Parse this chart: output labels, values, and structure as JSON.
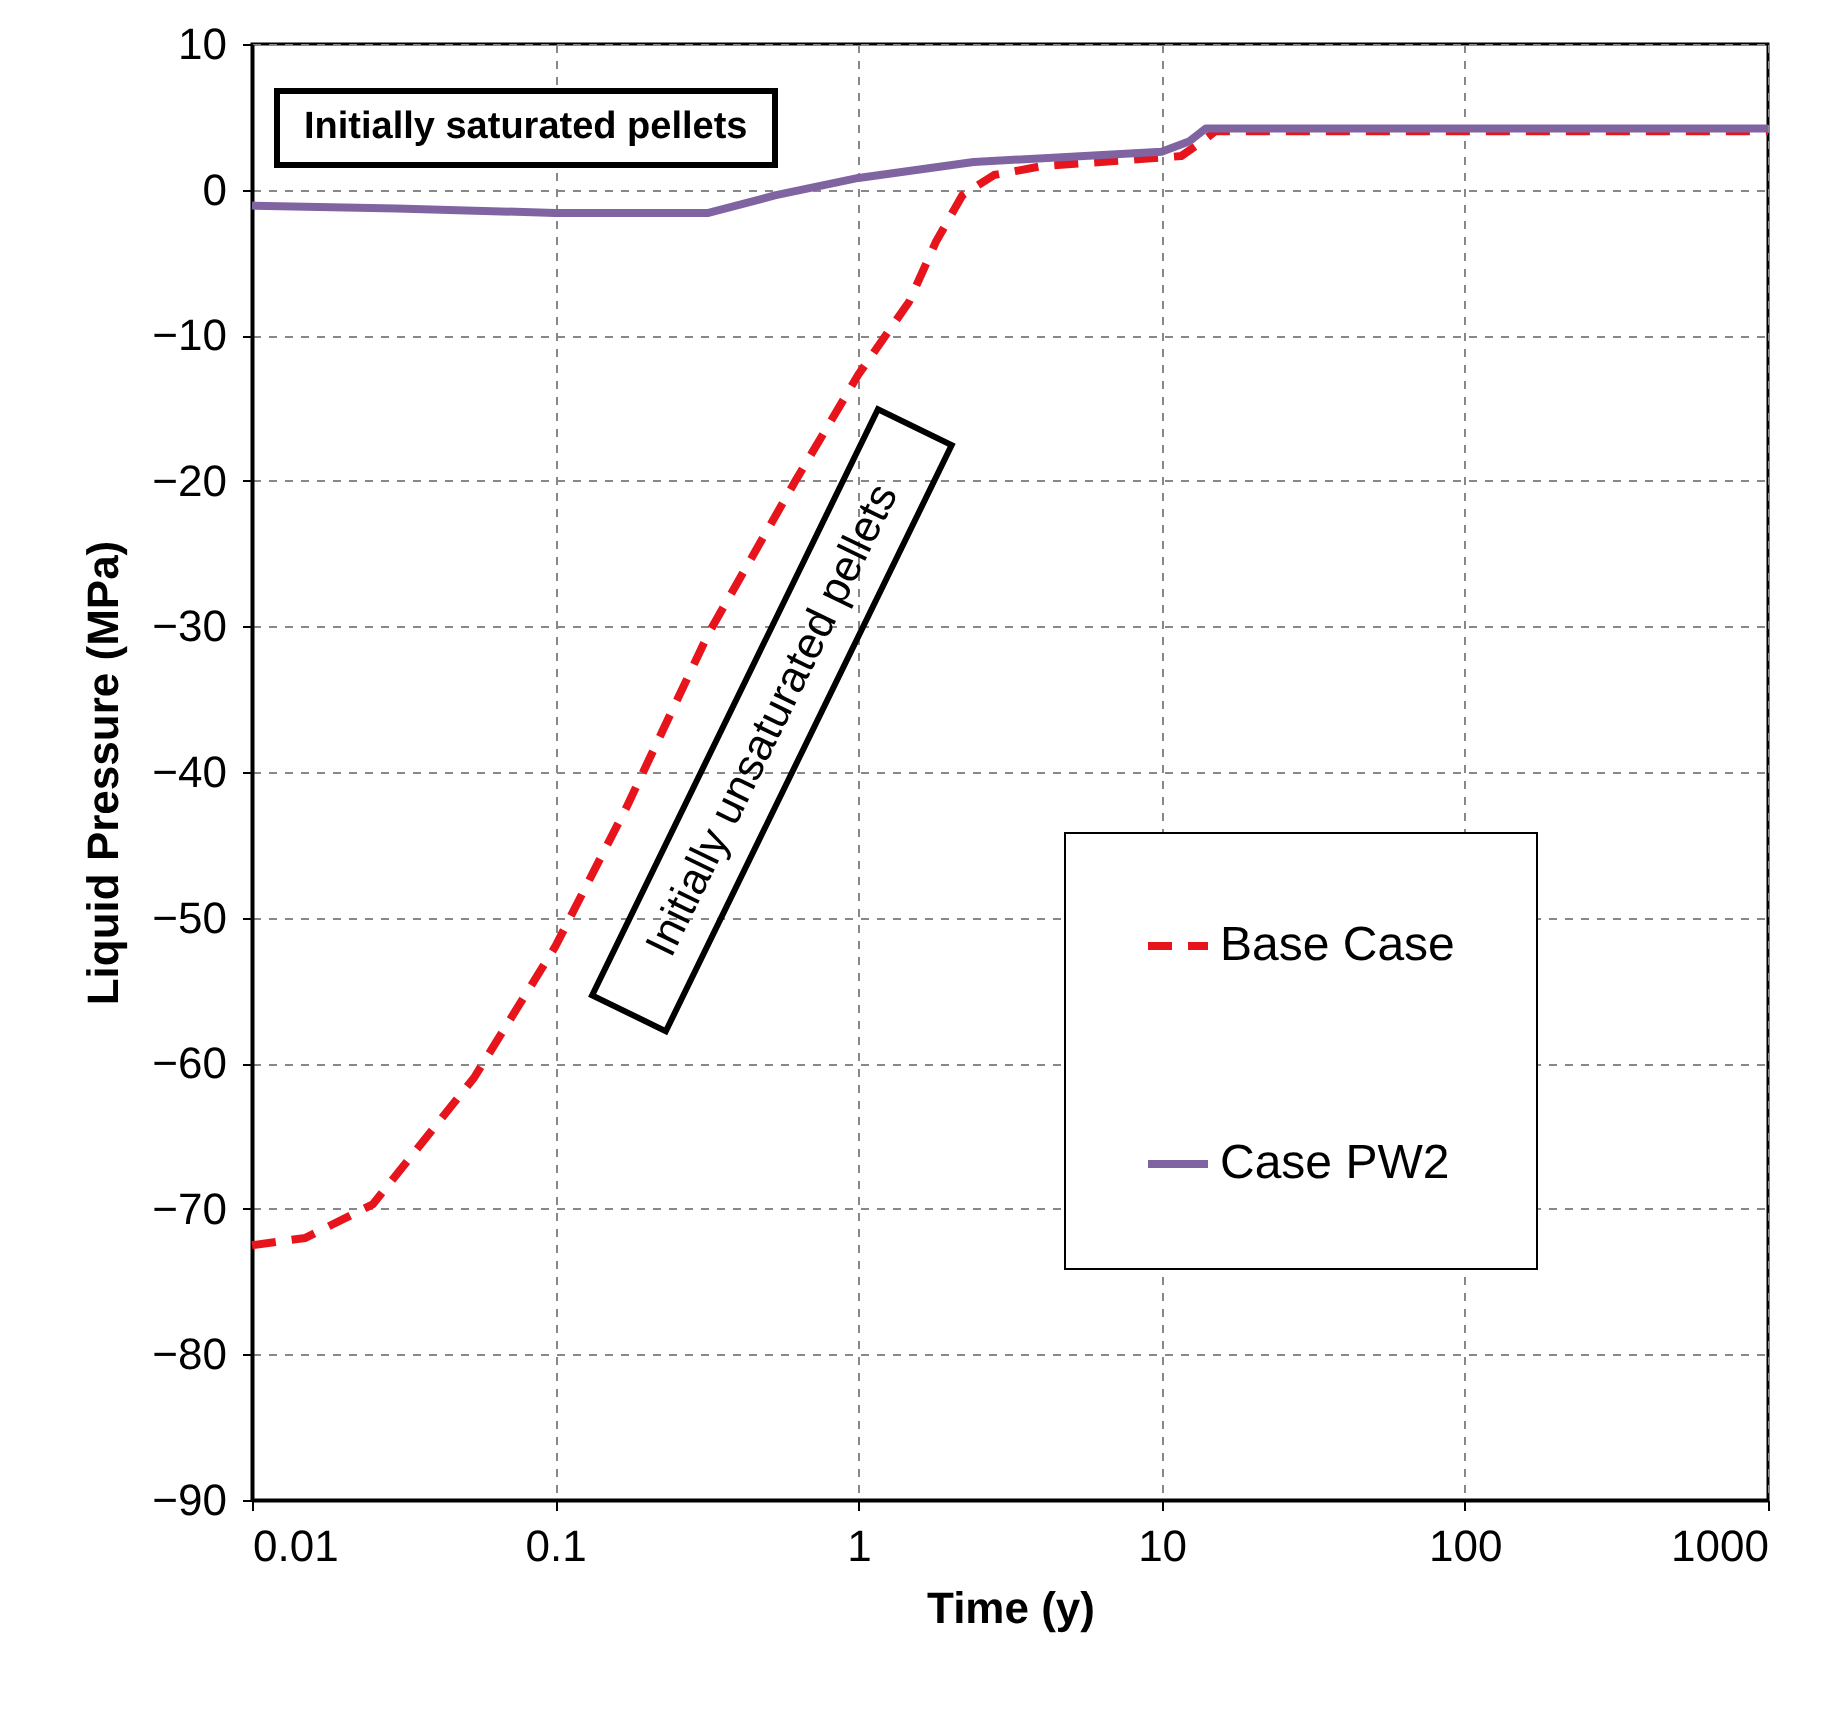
{
  "chart_data": {
    "type": "line",
    "xlabel": "Time (y)",
    "ylabel": "Liquid Pressure (MPa)",
    "log": "x",
    "xlim": [
      0.01,
      1000
    ],
    "xticks": [
      0.01,
      0.1,
      1,
      10,
      100,
      1000
    ],
    "ylim": [
      -90,
      10
    ],
    "yticks": [
      -90,
      -80,
      -70,
      -60,
      -50,
      -40,
      -30,
      -20,
      -10,
      0,
      10
    ],
    "grid": true,
    "legend": "bottom right",
    "marker": "none",
    "annotations": [
      "Initially saturated pellets",
      "Initially unsaturated pellets"
    ],
    "series": [
      {
        "name": "Base Case",
        "color": "#e8141c",
        "line_style": "dashed",
        "x": [
          0.01,
          0.015,
          0.025,
          0.054,
          0.1,
          0.173,
          0.32,
          0.62,
          1.0,
          1.47,
          1.8,
          2.2,
          2.8,
          4.0,
          11.6,
          13.6,
          15,
          100,
          1000
        ],
        "values": [
          -72.5,
          -72,
          -69.7,
          -61,
          -52,
          -42.3,
          -30.5,
          -20,
          -12.7,
          -7.7,
          -3.6,
          -0.4,
          1,
          1.6,
          2.3,
          3.3,
          4.0,
          4.0,
          4.0
        ]
      },
      {
        "name": "Case PW2",
        "color": "#8064a2",
        "line_style": "solid",
        "x": [
          0.01,
          0.03,
          0.1,
          0.32,
          0.53,
          1.0,
          2.4,
          10,
          12.3,
          14,
          100,
          1000
        ],
        "values": [
          -1.1,
          -1.3,
          -1.6,
          -1.6,
          -0.4,
          0.8,
          1.9,
          2.6,
          3.3,
          4.2,
          4.2,
          4.2
        ]
      }
    ]
  }
}
